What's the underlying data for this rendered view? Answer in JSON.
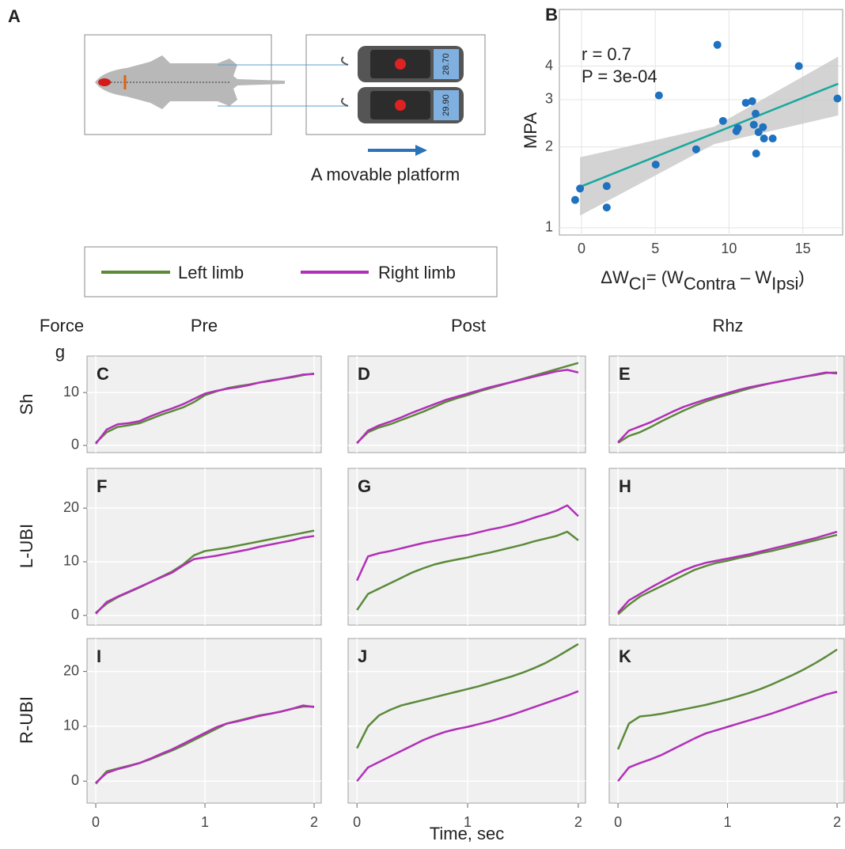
{
  "panel_a": {
    "label": "A",
    "caption": "A movable platform",
    "gauge_readings": [
      "28.70",
      "29.90"
    ]
  },
  "legend": [
    {
      "name": "Left limb",
      "color": "#5b8a3a"
    },
    {
      "name": "Right limb",
      "color": "#b22fb8"
    }
  ],
  "column_labels": [
    "Pre",
    "Post",
    "Rhz"
  ],
  "row_labels": [
    "Sh",
    "L-UBI",
    "R-UBI"
  ],
  "y_axis_label": [
    "Force",
    "g"
  ],
  "x_axis_label": "Time, sec",
  "chart_data": [
    {
      "type": "scatter",
      "label": "B",
      "ylabel": "MPA",
      "xlabel": [
        {
          "text": "ΔW"
        },
        {
          "text": "CI",
          "sub": true
        },
        {
          "text": "= (W"
        },
        {
          "text": "Contra",
          "sub": true
        },
        {
          "text": " – W"
        },
        {
          "text": "Ipsi",
          "sub": true
        },
        {
          "text": ")"
        }
      ],
      "annotations": [
        "r = 0.7",
        "P =  3e-04"
      ],
      "x": [
        -0.43,
        -0.1,
        1.71,
        1.71,
        5.03,
        5.25,
        7.77,
        9.21,
        9.59,
        10.5,
        10.6,
        11.14,
        11.57,
        11.68,
        11.8,
        11.84,
        12.0,
        12.3,
        12.37,
        12.96,
        14.73,
        17.35
      ],
      "values": [
        1.27,
        1.4,
        1.43,
        1.19,
        1.72,
        3.11,
        1.96,
        4.8,
        2.5,
        2.29,
        2.35,
        2.92,
        2.96,
        2.42,
        2.66,
        1.89,
        2.27,
        2.37,
        2.15,
        2.15,
        4.0,
        3.03
      ],
      "color": "#1f72c0",
      "fit": {
        "x": [
          -0.1,
          17.4
        ],
        "values": [
          1.42,
          3.44
        ],
        "color": "#1aa89e"
      },
      "band": {
        "x": [
          -0.1,
          9,
          17.4
        ],
        "lower": [
          1.11,
          2.05,
          2.62
        ],
        "upper": [
          1.83,
          2.38,
          4.34
        ],
        "color": "#c8c8c8"
      },
      "xlim": [
        -1.5,
        17.7
      ],
      "ylim": [
        0.94,
        6.5
      ],
      "xticks": [
        0,
        5,
        10,
        15
      ],
      "yticks": [
        1,
        2,
        3,
        4
      ],
      "log_y": true,
      "grid": true
    },
    {
      "type": "line",
      "label": "C",
      "x": [
        0,
        0.1,
        0.2,
        0.3,
        0.4,
        0.5,
        0.6,
        0.7,
        0.8,
        0.9,
        1,
        1.1,
        1.2,
        1.3,
        1.4,
        1.5,
        1.6,
        1.7,
        1.8,
        1.9,
        2
      ],
      "series": [
        {
          "values": [
            0.5,
            2.5,
            3.5,
            3.8,
            4.2,
            5,
            5.8,
            6.5,
            7.2,
            8.2,
            9.5,
            10.2,
            10.8,
            11.2,
            11.5,
            11.9,
            12.3,
            12.6,
            12.9,
            13.3,
            13.6
          ]
        },
        {
          "values": [
            0.3,
            3,
            4,
            4.2,
            4.6,
            5.5,
            6.3,
            7,
            7.8,
            8.8,
            9.8,
            10.3,
            10.7,
            11,
            11.4,
            11.9,
            12.2,
            12.6,
            13,
            13.4,
            13.5
          ]
        }
      ],
      "xlim": [
        -0.08,
        2.065
      ],
      "ylim": [
        -1.35,
        16.9
      ],
      "xticks": [
        0,
        1,
        2
      ],
      "yticks": [
        0,
        10
      ],
      "grid": true
    },
    {
      "type": "line",
      "label": "D",
      "x": [
        0,
        0.1,
        0.2,
        0.3,
        0.4,
        0.5,
        0.6,
        0.7,
        0.8,
        0.9,
        1,
        1.1,
        1.2,
        1.3,
        1.4,
        1.5,
        1.6,
        1.7,
        1.8,
        1.9,
        2
      ],
      "series": [
        {
          "values": [
            0.5,
            2.5,
            3.4,
            4,
            4.8,
            5.6,
            6.4,
            7.3,
            8.2,
            8.9,
            9.5,
            10.2,
            10.8,
            11.4,
            12,
            12.6,
            13.2,
            13.8,
            14.4,
            15,
            15.6
          ]
        },
        {
          "values": [
            0.4,
            2.8,
            3.8,
            4.5,
            5.3,
            6.2,
            7,
            7.8,
            8.6,
            9.2,
            9.8,
            10.4,
            11,
            11.5,
            12,
            12.5,
            13,
            13.5,
            14,
            14.3,
            13.8
          ]
        }
      ],
      "xlim": [
        -0.08,
        2.065
      ],
      "ylim": [
        -1.35,
        16.9
      ],
      "xticks": [
        0,
        1,
        2
      ],
      "yticks": [
        0,
        10
      ],
      "grid": true
    },
    {
      "type": "line",
      "label": "E",
      "x": [
        0,
        0.1,
        0.2,
        0.3,
        0.4,
        0.5,
        0.6,
        0.7,
        0.8,
        0.9,
        1,
        1.1,
        1.2,
        1.3,
        1.4,
        1.5,
        1.6,
        1.7,
        1.8,
        1.9,
        2
      ],
      "series": [
        {
          "values": [
            0.5,
            1.8,
            2.5,
            3.5,
            4.6,
            5.6,
            6.6,
            7.5,
            8.3,
            9,
            9.6,
            10.2,
            10.8,
            11.3,
            11.8,
            12.2,
            12.6,
            13,
            13.3,
            13.7,
            13.8
          ]
        },
        {
          "values": [
            0.6,
            2.8,
            3.6,
            4.4,
            5.4,
            6.4,
            7.3,
            8,
            8.7,
            9.3,
            9.9,
            10.5,
            11,
            11.4,
            11.8,
            12.2,
            12.6,
            13,
            13.4,
            13.8,
            13.6
          ]
        }
      ],
      "xlim": [
        -0.08,
        2.065
      ],
      "ylim": [
        -1.35,
        16.9
      ],
      "xticks": [
        0,
        1,
        2
      ],
      "yticks": [
        0,
        10
      ],
      "grid": true
    },
    {
      "type": "line",
      "label": "F",
      "x": [
        0,
        0.1,
        0.2,
        0.3,
        0.4,
        0.5,
        0.6,
        0.7,
        0.8,
        0.9,
        1,
        1.1,
        1.2,
        1.3,
        1.4,
        1.5,
        1.6,
        1.7,
        1.8,
        1.9,
        2
      ],
      "series": [
        {
          "values": [
            0.5,
            2.2,
            3.4,
            4.3,
            5.2,
            6.2,
            7.2,
            8.2,
            9.5,
            11.2,
            12,
            12.3,
            12.6,
            13,
            13.4,
            13.8,
            14.2,
            14.6,
            15,
            15.4,
            15.8
          ]
        },
        {
          "values": [
            0.3,
            2.5,
            3.5,
            4.4,
            5.3,
            6.2,
            7.1,
            8,
            9.3,
            10.5,
            10.8,
            11.1,
            11.5,
            11.9,
            12.3,
            12.8,
            13.2,
            13.6,
            14,
            14.5,
            14.8
          ]
        }
      ],
      "xlim": [
        -0.08,
        2.065
      ],
      "ylim": [
        -1.8,
        27.4
      ],
      "xticks": [
        0,
        1,
        2
      ],
      "yticks": [
        0,
        10,
        20
      ],
      "grid": true
    },
    {
      "type": "line",
      "label": "G",
      "x": [
        0,
        0.1,
        0.2,
        0.3,
        0.4,
        0.5,
        0.6,
        0.7,
        0.8,
        0.9,
        1,
        1.1,
        1.2,
        1.3,
        1.4,
        1.5,
        1.6,
        1.7,
        1.8,
        1.9,
        2
      ],
      "series": [
        {
          "values": [
            1,
            4,
            5,
            6,
            7,
            8,
            8.8,
            9.5,
            10,
            10.4,
            10.8,
            11.3,
            11.7,
            12.2,
            12.7,
            13.2,
            13.8,
            14.3,
            14.8,
            15.6,
            14
          ]
        },
        {
          "values": [
            6.5,
            11,
            11.6,
            12,
            12.5,
            13,
            13.5,
            13.9,
            14.3,
            14.7,
            15,
            15.5,
            16,
            16.4,
            16.9,
            17.5,
            18.2,
            18.8,
            19.5,
            20.5,
            18.5
          ]
        }
      ],
      "xlim": [
        -0.08,
        2.065
      ],
      "ylim": [
        -1.8,
        27.4
      ],
      "xticks": [
        0,
        1,
        2
      ],
      "yticks": [
        0,
        10,
        20
      ],
      "grid": true
    },
    {
      "type": "line",
      "label": "H",
      "x": [
        0,
        0.1,
        0.2,
        0.3,
        0.4,
        0.5,
        0.6,
        0.7,
        0.8,
        0.9,
        1,
        1.1,
        1.2,
        1.3,
        1.4,
        1.5,
        1.6,
        1.7,
        1.8,
        1.9,
        2
      ],
      "series": [
        {
          "values": [
            0.2,
            2,
            3.5,
            4.5,
            5.5,
            6.5,
            7.5,
            8.5,
            9.2,
            9.8,
            10.2,
            10.7,
            11.1,
            11.6,
            12,
            12.5,
            13,
            13.5,
            14,
            14.5,
            15
          ]
        },
        {
          "values": [
            0.5,
            2.8,
            4,
            5.2,
            6.3,
            7.4,
            8.4,
            9.2,
            9.8,
            10.2,
            10.6,
            11,
            11.4,
            11.9,
            12.4,
            12.9,
            13.4,
            13.9,
            14.4,
            15,
            15.6
          ]
        }
      ],
      "xlim": [
        -0.08,
        2.065
      ],
      "ylim": [
        -1.8,
        27.4
      ],
      "xticks": [
        0,
        1,
        2
      ],
      "yticks": [
        0,
        10,
        20
      ],
      "grid": true
    },
    {
      "type": "line",
      "label": "I",
      "x": [
        0,
        0.1,
        0.2,
        0.3,
        0.4,
        0.5,
        0.6,
        0.7,
        0.8,
        0.9,
        1,
        1.1,
        1.2,
        1.3,
        1.4,
        1.5,
        1.6,
        1.7,
        1.8,
        1.9,
        2
      ],
      "series": [
        {
          "values": [
            -0.5,
            1.8,
            2.3,
            2.8,
            3.3,
            4,
            4.8,
            5.6,
            6.5,
            7.5,
            8.5,
            9.5,
            10.5,
            11,
            11.5,
            12,
            12.3,
            12.7,
            13.2,
            13.6,
            13.6
          ]
        },
        {
          "values": [
            -0.3,
            1.5,
            2.2,
            2.7,
            3.3,
            4.1,
            5,
            5.8,
            6.8,
            7.8,
            8.8,
            9.8,
            10.5,
            10.9,
            11.4,
            11.9,
            12.3,
            12.7,
            13.2,
            13.8,
            13.5
          ]
        }
      ],
      "xlim": [
        -0.08,
        2.065
      ],
      "ylim": [
        -4,
        26
      ],
      "xticks": [
        0,
        1,
        2
      ],
      "yticks": [
        0,
        10,
        20
      ],
      "grid": true
    },
    {
      "type": "line",
      "label": "J",
      "x": [
        0,
        0.1,
        0.2,
        0.3,
        0.4,
        0.5,
        0.6,
        0.7,
        0.8,
        0.9,
        1,
        1.1,
        1.2,
        1.3,
        1.4,
        1.5,
        1.6,
        1.7,
        1.8,
        1.9,
        2
      ],
      "series": [
        {
          "values": [
            6,
            10,
            12,
            13,
            13.8,
            14.3,
            14.8,
            15.3,
            15.8,
            16.3,
            16.8,
            17.3,
            17.9,
            18.5,
            19.1,
            19.8,
            20.6,
            21.5,
            22.6,
            23.8,
            25
          ]
        },
        {
          "values": [
            0,
            2.5,
            3.5,
            4.5,
            5.5,
            6.5,
            7.5,
            8.3,
            9,
            9.5,
            9.9,
            10.4,
            10.9,
            11.5,
            12.1,
            12.8,
            13.5,
            14.2,
            14.9,
            15.6,
            16.4
          ]
        }
      ],
      "xlim": [
        -0.08,
        2.065
      ],
      "ylim": [
        -4,
        26
      ],
      "xticks": [
        0,
        1,
        2
      ],
      "yticks": [
        0,
        10,
        20
      ],
      "grid": true
    },
    {
      "type": "line",
      "label": "K",
      "x": [
        0,
        0.1,
        0.2,
        0.3,
        0.4,
        0.5,
        0.6,
        0.7,
        0.8,
        0.9,
        1,
        1.1,
        1.2,
        1.3,
        1.4,
        1.5,
        1.6,
        1.7,
        1.8,
        1.9,
        2
      ],
      "series": [
        {
          "values": [
            5.8,
            10.5,
            11.8,
            12,
            12.3,
            12.7,
            13.1,
            13.5,
            13.9,
            14.4,
            14.9,
            15.5,
            16.1,
            16.8,
            17.6,
            18.5,
            19.4,
            20.4,
            21.5,
            22.7,
            24
          ]
        },
        {
          "values": [
            0,
            2.5,
            3.3,
            4,
            4.8,
            5.8,
            6.8,
            7.8,
            8.7,
            9.3,
            9.9,
            10.5,
            11.1,
            11.7,
            12.3,
            13,
            13.7,
            14.4,
            15.1,
            15.8,
            16.3
          ]
        }
      ],
      "xlim": [
        -0.08,
        2.065
      ],
      "ylim": [
        -4,
        26
      ],
      "xticks": [
        0,
        1,
        2
      ],
      "yticks": [
        0,
        10,
        20
      ],
      "grid": true
    }
  ]
}
